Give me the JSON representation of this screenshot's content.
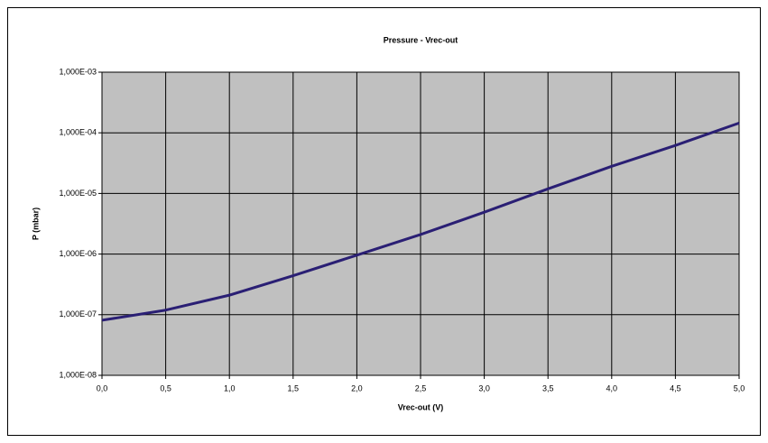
{
  "chart_data": {
    "type": "line",
    "title": "Pressure - Vrec-out",
    "xlabel": "Vrec-out (V)",
    "ylabel": "P (mbar)",
    "yscale": "log",
    "grid": true,
    "background": "#c0c0c0",
    "x": [
      0,
      0.5,
      1.0,
      1.5,
      2.0,
      2.5,
      3.0,
      3.5,
      4.0,
      4.5,
      5.0
    ],
    "series": [
      {
        "name": "P",
        "color": "#2a1f74",
        "values": [
          8.1e-08,
          1.19e-07,
          2.1e-07,
          4.4e-07,
          9.6e-07,
          2.1e-06,
          4.9e-06,
          1.19e-05,
          2.8e-05,
          6.2e-05,
          0.000145
        ]
      }
    ],
    "xlim": [
      0,
      5
    ],
    "ylim": [
      1e-08,
      0.001
    ],
    "xticks": [
      {
        "value": 0,
        "label": "0,0"
      },
      {
        "value": 0.5,
        "label": "0,5"
      },
      {
        "value": 1,
        "label": "1,0"
      },
      {
        "value": 1.5,
        "label": "1,5"
      },
      {
        "value": 2,
        "label": "2,0"
      },
      {
        "value": 2.5,
        "label": "2,5"
      },
      {
        "value": 3,
        "label": "3,0"
      },
      {
        "value": 3.5,
        "label": "3,5"
      },
      {
        "value": 4,
        "label": "4,0"
      },
      {
        "value": 4.5,
        "label": "4,5"
      },
      {
        "value": 5,
        "label": "5,0"
      }
    ],
    "yticks": [
      {
        "value": 1e-08,
        "label": "1,000E-08"
      },
      {
        "value": 1e-07,
        "label": "1,000E-07"
      },
      {
        "value": 1e-06,
        "label": "1,000E-06"
      },
      {
        "value": 1e-05,
        "label": "1,000E-05"
      },
      {
        "value": 0.0001,
        "label": "1,000E-04"
      },
      {
        "value": 0.001,
        "label": "1,000E-03"
      }
    ]
  }
}
